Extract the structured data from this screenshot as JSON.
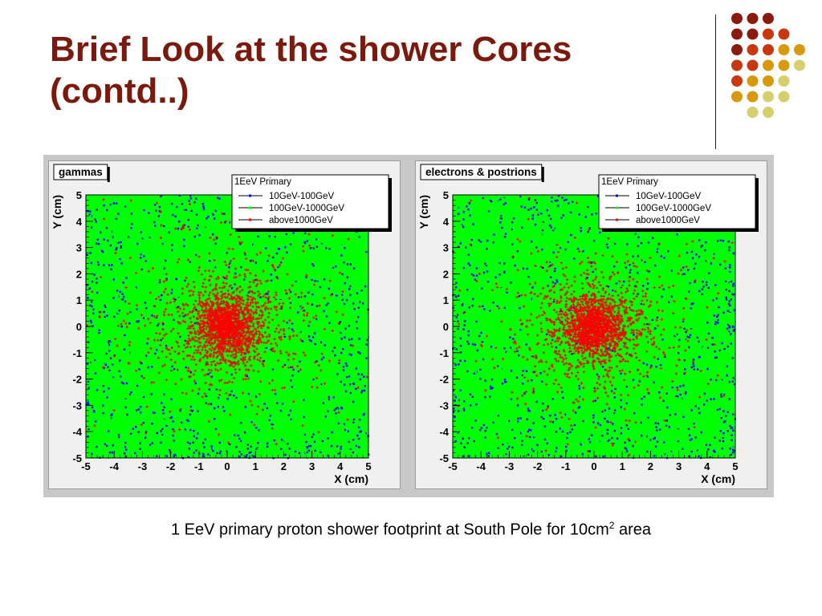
{
  "slide": {
    "title_line1": "Brief Look at the shower Cores",
    "title_line2": "(contd..)",
    "caption_prefix": "1 EeV primary proton shower footprint at South Pole for 10cm",
    "caption_sup": "2",
    "caption_suffix": " area",
    "title_color": "#7b1a0c",
    "decor_colors": [
      "#8b1a10",
      "#c8380f",
      "#d89a0c",
      "#d6cf6e"
    ]
  },
  "chart_data": [
    {
      "type": "scatter",
      "title": "gammas",
      "xlabel": "X (cm)",
      "ylabel": "Y (cm)",
      "xlim": [
        -5,
        5
      ],
      "ylim": [
        -5,
        5
      ],
      "xticks": [
        -5,
        -4,
        -3,
        -2,
        -1,
        0,
        1,
        2,
        3,
        4,
        5
      ],
      "yticks": [
        -5,
        -4,
        -3,
        -2,
        -1,
        0,
        1,
        2,
        3,
        4,
        5
      ],
      "grid": false,
      "legend_title": "1EeV Primary",
      "legend_position": "top-right",
      "series": [
        {
          "name": "10GeV-100GeV",
          "color": "#0000ff",
          "distribution": "uniform, densest at edges",
          "center": [
            0,
            0
          ]
        },
        {
          "name": "100GeV-1000GeV",
          "color": "#00ff00",
          "distribution": "uniform fill",
          "center": [
            0,
            0
          ]
        },
        {
          "name": "above1000GeV",
          "color": "#ff0000",
          "distribution": "concentrated core",
          "center": [
            0,
            0
          ]
        }
      ]
    },
    {
      "type": "scatter",
      "title": "electrons & postrions",
      "xlabel": "X (cm)",
      "ylabel": "Y (cm)",
      "xlim": [
        -5,
        5
      ],
      "ylim": [
        -5,
        5
      ],
      "xticks": [
        -5,
        -4,
        -3,
        -2,
        -1,
        0,
        1,
        2,
        3,
        4,
        5
      ],
      "yticks": [
        -5,
        -4,
        -3,
        -2,
        -1,
        0,
        1,
        2,
        3,
        4,
        5
      ],
      "grid": false,
      "legend_title": "1EeV Primary",
      "legend_position": "top-right",
      "series": [
        {
          "name": "10GeV-100GeV",
          "color": "#0000ff",
          "distribution": "uniform, densest at edges",
          "center": [
            0,
            0
          ]
        },
        {
          "name": "100GeV-1000GeV",
          "color": "#00ff00",
          "distribution": "uniform fill",
          "center": [
            0,
            0
          ]
        },
        {
          "name": "above1000GeV",
          "color": "#ff0000",
          "distribution": "concentrated core",
          "center": [
            0,
            0
          ]
        }
      ]
    }
  ]
}
